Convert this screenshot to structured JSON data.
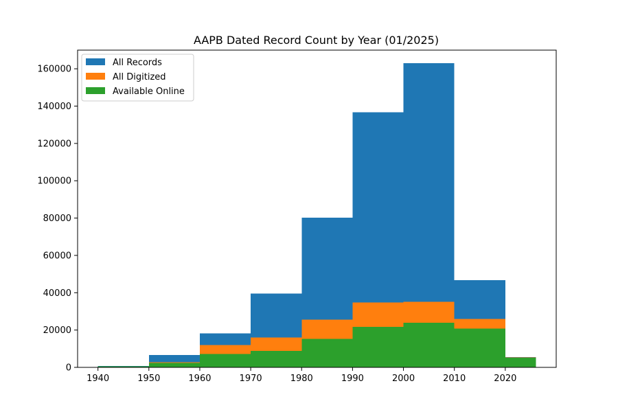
{
  "chart_data": {
    "type": "bar",
    "title": "AAPB Dated Record Count by Year (01/2025)",
    "xlabel": "",
    "ylabel": "",
    "bin_edges": [
      1940,
      1950,
      1960,
      1970,
      1980,
      1990,
      2000,
      2010,
      2020,
      2026
    ],
    "xlim": [
      1936,
      2030
    ],
    "ylim": [
      0,
      170000
    ],
    "xticks": [
      1940,
      1950,
      1960,
      1970,
      1980,
      1990,
      2000,
      2010,
      2020
    ],
    "yticks": [
      0,
      20000,
      40000,
      60000,
      80000,
      100000,
      120000,
      140000,
      160000
    ],
    "grid": false,
    "legend_position": "top-left",
    "series": [
      {
        "name": "All Records",
        "color": "#1f77b4",
        "values": [
          800,
          6600,
          18300,
          39500,
          80200,
          136700,
          163000,
          46800,
          5600
        ]
      },
      {
        "name": "All Digitized",
        "color": "#ff7f0e",
        "values": [
          600,
          2800,
          12000,
          16000,
          25500,
          34700,
          35200,
          25900,
          5300
        ]
      },
      {
        "name": "Available Online",
        "color": "#2ca02c",
        "values": [
          500,
          2300,
          7200,
          8800,
          15200,
          21800,
          24000,
          20800,
          5100
        ]
      }
    ]
  }
}
